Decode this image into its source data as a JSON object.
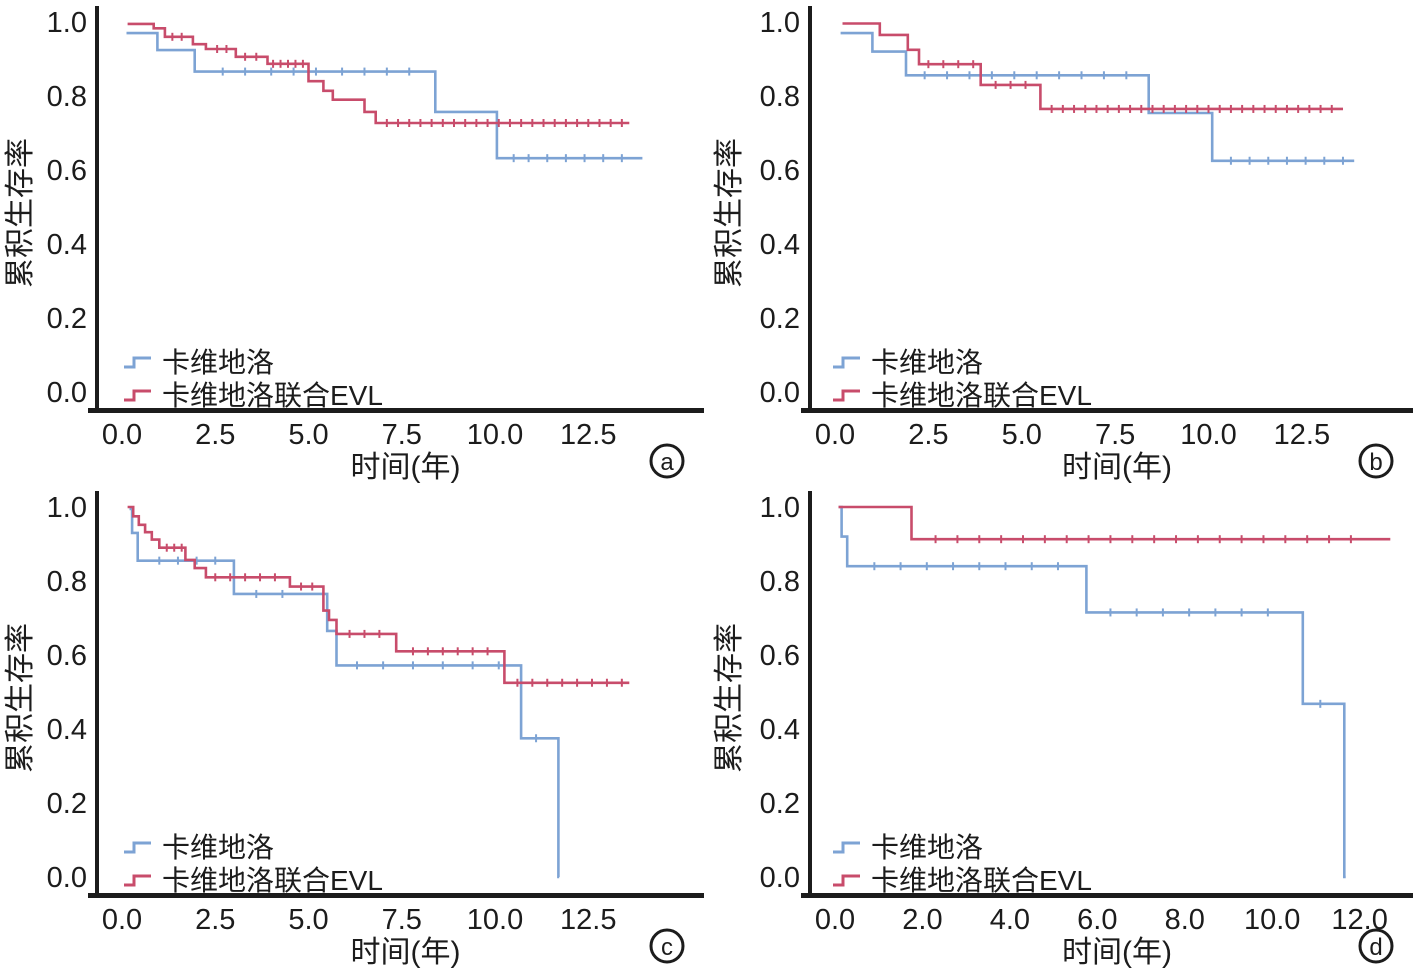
{
  "figure": {
    "type": "kaplan-meier-survival-grid",
    "background": "#ffffff",
    "axis_color": "#1c1c1c",
    "ylabel": "累积生存率",
    "xlabel": "时间(年)",
    "series_names": [
      "卡维地洛",
      "卡维地洛联合EVL"
    ],
    "series_colors": [
      "#7DA3D4",
      "#C84C6B"
    ]
  },
  "chart_data": [
    {
      "panel_label": "a",
      "type": "line",
      "subtype": "kaplan_meier_step",
      "title": "",
      "xlabel": "时间(年)",
      "ylabel": "累积生存率",
      "xlim": [
        0,
        15.2
      ],
      "ylim": [
        0.0,
        1.0
      ],
      "grid": false,
      "legend_position": "lower-left",
      "x_ticks": [
        0,
        2.5,
        5,
        7.5,
        10,
        12.5
      ],
      "x_tick_labels": [
        "0.0",
        "2.5",
        "5.0",
        "7.5",
        "10.0",
        "12.5"
      ],
      "y_ticks": [
        1.0,
        0.8,
        0.6,
        0.4,
        0.2,
        0.0
      ],
      "y_tick_labels": [
        "1.0",
        "0.8",
        "0.6",
        "0.4",
        "0.2",
        "0.0"
      ],
      "series": [
        {
          "name": "卡维地洛",
          "color": "#7DA3D4",
          "steps": [
            [
              0.12,
              0.97
            ],
            [
              0.95,
              0.924
            ],
            [
              1.95,
              0.866
            ],
            [
              8.4,
              0.757
            ],
            [
              10.05,
              0.632
            ]
          ],
          "end_t": 13.95,
          "censor_t": [
            2.7,
            3.3,
            4.0,
            4.6,
            5.2,
            5.9,
            6.5,
            7.1,
            7.7,
            10.5,
            10.9,
            11.4,
            11.9,
            12.4,
            12.9,
            13.4
          ]
        },
        {
          "name": "卡维地洛联合EVL",
          "color": "#C84C6B",
          "steps": [
            [
              0.15,
              0.995
            ],
            [
              0.85,
              0.983
            ],
            [
              1.15,
              0.96
            ],
            [
              1.9,
              0.94
            ],
            [
              2.25,
              0.927
            ],
            [
              3.05,
              0.906
            ],
            [
              3.9,
              0.887
            ],
            [
              5.0,
              0.84
            ],
            [
              5.4,
              0.814
            ],
            [
              5.65,
              0.79
            ],
            [
              6.5,
              0.757
            ],
            [
              6.8,
              0.727
            ]
          ],
          "end_t": 13.6,
          "censor_t": [
            1.35,
            1.6,
            2.55,
            2.8,
            3.3,
            3.6,
            4.05,
            4.25,
            4.45,
            4.65,
            4.85,
            7.1,
            7.4,
            7.7,
            8.0,
            8.3,
            8.6,
            8.9,
            9.2,
            9.5,
            9.8,
            10.1,
            10.4,
            10.7,
            11.0,
            11.3,
            11.6,
            11.9,
            12.2,
            12.5,
            12.8,
            13.1,
            13.4
          ]
        }
      ]
    },
    {
      "panel_label": "b",
      "type": "line",
      "subtype": "kaplan_meier_step",
      "title": "",
      "xlabel": "时间(年)",
      "ylabel": "累积生存率",
      "xlim": [
        0,
        15.1
      ],
      "ylim": [
        0.0,
        1.0
      ],
      "grid": false,
      "legend_position": "lower-left",
      "x_ticks": [
        0,
        2.5,
        5,
        7.5,
        10,
        12.5
      ],
      "x_tick_labels": [
        "0.0",
        "2.5",
        "5.0",
        "7.5",
        "10.0",
        "12.5"
      ],
      "y_ticks": [
        1.0,
        0.8,
        0.6,
        0.4,
        0.2,
        0.0
      ],
      "y_tick_labels": [
        "1.0",
        "0.8",
        "0.6",
        "0.4",
        "0.2",
        "0.0"
      ],
      "series": [
        {
          "name": "卡维地洛",
          "color": "#7DA3D4",
          "steps": [
            [
              0.15,
              0.97
            ],
            [
              1.0,
              0.92
            ],
            [
              1.9,
              0.856
            ],
            [
              8.4,
              0.754
            ],
            [
              10.1,
              0.625
            ]
          ],
          "end_t": 13.9,
          "censor_t": [
            2.4,
            3.0,
            3.6,
            4.2,
            4.8,
            5.4,
            6.0,
            6.6,
            7.2,
            7.8,
            10.6,
            11.1,
            11.6,
            12.1,
            12.6,
            13.1,
            13.6
          ]
        },
        {
          "name": "卡维地洛联合EVL",
          "color": "#C84C6B",
          "steps": [
            [
              0.2,
              0.996
            ],
            [
              1.2,
              0.965
            ],
            [
              1.95,
              0.925
            ],
            [
              2.25,
              0.886
            ],
            [
              3.9,
              0.83
            ],
            [
              5.5,
              0.765
            ]
          ],
          "end_t": 13.6,
          "censor_t": [
            2.5,
            2.9,
            3.3,
            3.7,
            4.3,
            4.7,
            5.1,
            5.8,
            6.1,
            6.4,
            6.7,
            7.0,
            7.3,
            7.6,
            7.9,
            8.2,
            8.5,
            8.8,
            9.1,
            9.4,
            9.7,
            10.0,
            10.3,
            10.6,
            10.9,
            11.2,
            11.5,
            11.8,
            12.1,
            12.4,
            12.7,
            13.0,
            13.3
          ]
        }
      ]
    },
    {
      "panel_label": "c",
      "type": "line",
      "subtype": "kaplan_meier_step",
      "title": "",
      "xlabel": "时间(年)",
      "ylabel": "累积生存率",
      "xlim": [
        0,
        15.2
      ],
      "ylim": [
        0.0,
        1.0
      ],
      "grid": false,
      "legend_position": "lower-left",
      "x_ticks": [
        0,
        2.5,
        5,
        7.5,
        10,
        12.5
      ],
      "x_tick_labels": [
        "0.0",
        "2.5",
        "5.0",
        "7.5",
        "10.0",
        "12.5"
      ],
      "y_ticks": [
        1.0,
        0.8,
        0.6,
        0.4,
        0.2,
        0.0
      ],
      "y_tick_labels": [
        "1.0",
        "0.8",
        "0.6",
        "0.4",
        "0.2",
        "0.0"
      ],
      "series": [
        {
          "name": "卡维地洛",
          "color": "#7DA3D4",
          "steps": [
            [
              0.2,
              0.995
            ],
            [
              0.27,
              0.93
            ],
            [
              0.42,
              0.855
            ],
            [
              3.0,
              0.765
            ],
            [
              5.5,
              0.665
            ],
            [
              5.75,
              0.572
            ],
            [
              10.7,
              0.375
            ],
            [
              11.7,
              0.0
            ]
          ],
          "end_t": 11.72,
          "censor_t": [
            1.0,
            1.5,
            2.0,
            2.5,
            3.6,
            4.3,
            6.3,
            7.0,
            7.8,
            8.6,
            9.4,
            10.1,
            11.1
          ]
        },
        {
          "name": "卡维地洛联合EVL",
          "color": "#C84C6B",
          "steps": [
            [
              0.15,
              1.0
            ],
            [
              0.3,
              0.975
            ],
            [
              0.45,
              0.952
            ],
            [
              0.62,
              0.932
            ],
            [
              0.8,
              0.912
            ],
            [
              1.0,
              0.89
            ],
            [
              1.7,
              0.857
            ],
            [
              1.95,
              0.835
            ],
            [
              2.25,
              0.81
            ],
            [
              4.5,
              0.785
            ],
            [
              5.4,
              0.72
            ],
            [
              5.55,
              0.695
            ],
            [
              5.75,
              0.657
            ],
            [
              7.35,
              0.61
            ],
            [
              10.25,
              0.525
            ]
          ],
          "end_t": 13.6,
          "censor_t": [
            1.2,
            1.4,
            1.6,
            2.5,
            2.9,
            3.3,
            3.7,
            4.1,
            4.8,
            5.1,
            6.1,
            6.5,
            6.9,
            7.8,
            8.2,
            8.6,
            9.0,
            9.4,
            9.8,
            10.6,
            11.0,
            11.4,
            11.8,
            12.2,
            12.6,
            13.0,
            13.4
          ]
        }
      ]
    },
    {
      "panel_label": "d",
      "type": "line",
      "subtype": "kaplan_meier_step",
      "title": "",
      "xlabel": "时间(年)",
      "ylabel": "累积生存率",
      "xlim": [
        0,
        12.9
      ],
      "ylim": [
        0.0,
        1.0
      ],
      "grid": false,
      "legend_position": "lower-left",
      "x_ticks": [
        0,
        2,
        4,
        6,
        8,
        10,
        12
      ],
      "x_tick_labels": [
        "0.0",
        "2.0",
        "4.0",
        "6.0",
        "8.0",
        "10.0",
        "12.0"
      ],
      "y_ticks": [
        1.0,
        0.8,
        0.6,
        0.4,
        0.2,
        0.0
      ],
      "y_tick_labels": [
        "1.0",
        "0.8",
        "0.6",
        "0.4",
        "0.2",
        "0.0"
      ],
      "series": [
        {
          "name": "卡维地洛",
          "color": "#7DA3D4",
          "steps": [
            [
              0.08,
              1.0
            ],
            [
              0.15,
              0.92
            ],
            [
              0.28,
              0.84
            ],
            [
              5.75,
              0.715
            ],
            [
              10.7,
              0.468
            ],
            [
              11.65,
              0.0
            ]
          ],
          "end_t": 11.68,
          "censor_t": [
            0.9,
            1.5,
            2.1,
            2.7,
            3.3,
            3.9,
            4.5,
            5.1,
            6.3,
            6.9,
            7.5,
            8.1,
            8.7,
            9.3,
            9.9,
            11.1
          ]
        },
        {
          "name": "卡维地洛联合EVL",
          "color": "#C84C6B",
          "steps": [
            [
              0.08,
              1.0
            ],
            [
              1.75,
              0.913
            ]
          ],
          "end_t": 12.7,
          "censor_t": [
            2.3,
            2.8,
            3.3,
            3.8,
            4.3,
            4.8,
            5.3,
            5.8,
            6.3,
            6.8,
            7.3,
            7.8,
            8.3,
            8.8,
            9.3,
            9.8,
            10.3,
            10.8,
            11.3,
            11.8
          ]
        }
      ]
    }
  ]
}
